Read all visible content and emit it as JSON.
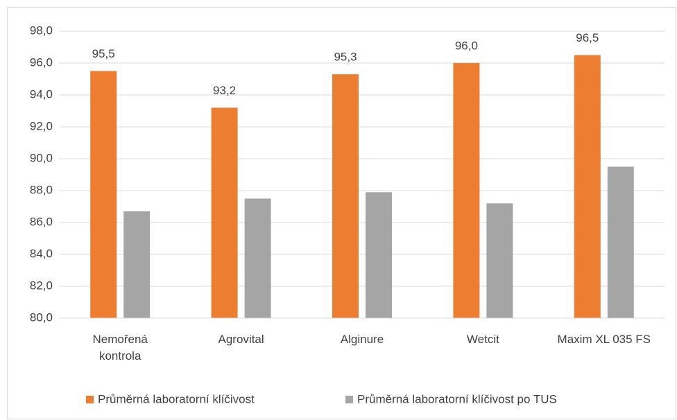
{
  "chart_data": {
    "type": "bar",
    "categories": [
      "Nemořená kontrola",
      "Agrovital",
      "Alginure",
      "Wetcit",
      "Maxim XL 035 FS"
    ],
    "series": [
      {
        "name": "Průměrná laboratorní klíčivost",
        "color": "#ed7d31",
        "values": [
          95.5,
          93.2,
          95.3,
          96.0,
          96.5
        ],
        "value_labels": [
          "95,5",
          "93,2",
          "95,3",
          "96,0",
          "96,5"
        ]
      },
      {
        "name": "Průměrná laboratorní klíčivost po TUS",
        "color": "#a5a5a5",
        "values": [
          86.7,
          87.5,
          87.9,
          87.2,
          89.5
        ]
      }
    ],
    "ylim": [
      80,
      98
    ],
    "yticks": [
      {
        "value": 80,
        "label": "80,0"
      },
      {
        "value": 82,
        "label": "82,0"
      },
      {
        "value": 84,
        "label": "84,0"
      },
      {
        "value": 86,
        "label": "86,0"
      },
      {
        "value": 88,
        "label": "88,0"
      },
      {
        "value": 90,
        "label": "90,0"
      },
      {
        "value": 92,
        "label": "92,0"
      },
      {
        "value": 94,
        "label": "94,0"
      },
      {
        "value": 96,
        "label": "96,0"
      },
      {
        "value": 98,
        "label": "98,0"
      }
    ],
    "grid": true,
    "legend": "bottom"
  }
}
